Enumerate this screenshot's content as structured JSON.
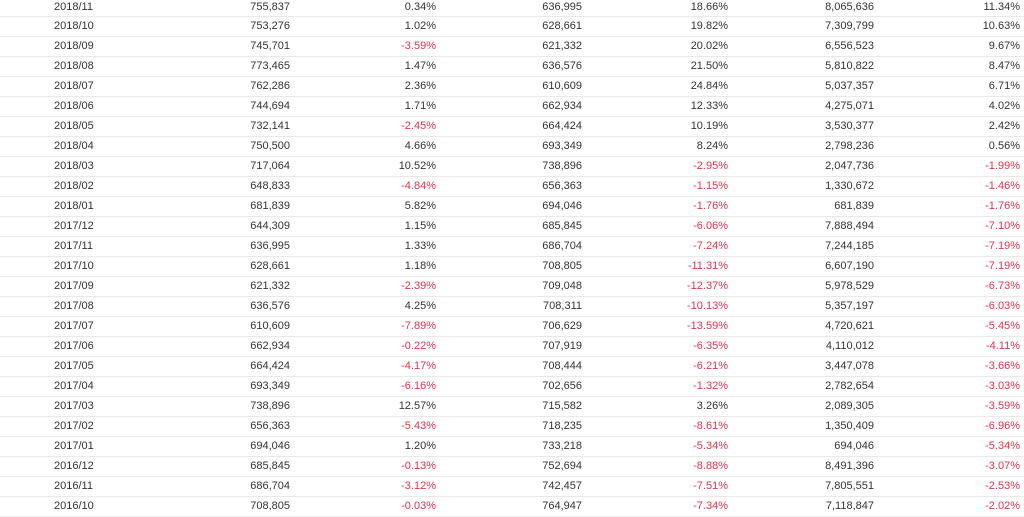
{
  "colors": {
    "text": "#333333",
    "negative": "#e8324a",
    "row_border": "#e9e9e9"
  },
  "rows": [
    [
      "2018/11",
      "755,837",
      "0.34%",
      "636,995",
      "18.66%",
      "8,065,636",
      "11.34%"
    ],
    [
      "2018/10",
      "753,276",
      "1.02%",
      "628,661",
      "19.82%",
      "7,309,799",
      "10.63%"
    ],
    [
      "2018/09",
      "745,701",
      "-3.59%",
      "621,332",
      "20.02%",
      "6,556,523",
      "9.67%"
    ],
    [
      "2018/08",
      "773,465",
      "1.47%",
      "636,576",
      "21.50%",
      "5,810,822",
      "8.47%"
    ],
    [
      "2018/07",
      "762,286",
      "2.36%",
      "610,609",
      "24.84%",
      "5,037,357",
      "6.71%"
    ],
    [
      "2018/06",
      "744,694",
      "1.71%",
      "662,934",
      "12.33%",
      "4,275,071",
      "4.02%"
    ],
    [
      "2018/05",
      "732,141",
      "-2.45%",
      "664,424",
      "10.19%",
      "3,530,377",
      "2.42%"
    ],
    [
      "2018/04",
      "750,500",
      "4.66%",
      "693,349",
      "8.24%",
      "2,798,236",
      "0.56%"
    ],
    [
      "2018/03",
      "717,064",
      "10.52%",
      "738,896",
      "-2.95%",
      "2,047,736",
      "-1.99%"
    ],
    [
      "2018/02",
      "648,833",
      "-4.84%",
      "656,363",
      "-1.15%",
      "1,330,672",
      "-1.46%"
    ],
    [
      "2018/01",
      "681,839",
      "5.82%",
      "694,046",
      "-1.76%",
      "681,839",
      "-1.76%"
    ],
    [
      "2017/12",
      "644,309",
      "1.15%",
      "685,845",
      "-6.06%",
      "7,888,494",
      "-7.10%"
    ],
    [
      "2017/11",
      "636,995",
      "1.33%",
      "686,704",
      "-7.24%",
      "7,244,185",
      "-7.19%"
    ],
    [
      "2017/10",
      "628,661",
      "1.18%",
      "708,805",
      "-11.31%",
      "6,607,190",
      "-7.19%"
    ],
    [
      "2017/09",
      "621,332",
      "-2.39%",
      "709,048",
      "-12.37%",
      "5,978,529",
      "-6.73%"
    ],
    [
      "2017/08",
      "636,576",
      "4.25%",
      "708,311",
      "-10.13%",
      "5,357,197",
      "-6.03%"
    ],
    [
      "2017/07",
      "610,609",
      "-7.89%",
      "706,629",
      "-13.59%",
      "4,720,621",
      "-5.45%"
    ],
    [
      "2017/06",
      "662,934",
      "-0.22%",
      "707,919",
      "-6.35%",
      "4,110,012",
      "-4.11%"
    ],
    [
      "2017/05",
      "664,424",
      "-4.17%",
      "708,444",
      "-6.21%",
      "3,447,078",
      "-3.66%"
    ],
    [
      "2017/04",
      "693,349",
      "-6.16%",
      "702,656",
      "-1.32%",
      "2,782,654",
      "-3.03%"
    ],
    [
      "2017/03",
      "738,896",
      "12.57%",
      "715,582",
      "3.26%",
      "2,089,305",
      "-3.59%"
    ],
    [
      "2017/02",
      "656,363",
      "-5.43%",
      "718,235",
      "-8.61%",
      "1,350,409",
      "-6.96%"
    ],
    [
      "2017/01",
      "694,046",
      "1.20%",
      "733,218",
      "-5.34%",
      "694,046",
      "-5.34%"
    ],
    [
      "2016/12",
      "685,845",
      "-0.13%",
      "752,694",
      "-8.88%",
      "8,491,396",
      "-3.07%"
    ],
    [
      "2016/11",
      "686,704",
      "-3.12%",
      "742,457",
      "-7.51%",
      "7,805,551",
      "-2.53%"
    ],
    [
      "2016/10",
      "708,805",
      "-0.03%",
      "764,947",
      "-7.34%",
      "7,118,847",
      "-2.02%"
    ]
  ]
}
